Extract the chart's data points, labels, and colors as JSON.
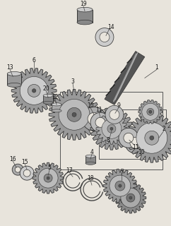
{
  "bg_color": "#e8e4dc",
  "line_color": "#444444",
  "gear_dark": "#888888",
  "gear_mid": "#aaaaaa",
  "gear_light": "#cccccc",
  "gear_edge": "#333333",
  "label_color": "#111111",
  "shaft_color1": "#222222",
  "shaft_color2": "#777777",
  "box_color": "#555555",
  "figsize": [
    2.42,
    3.2
  ],
  "dpi": 100
}
